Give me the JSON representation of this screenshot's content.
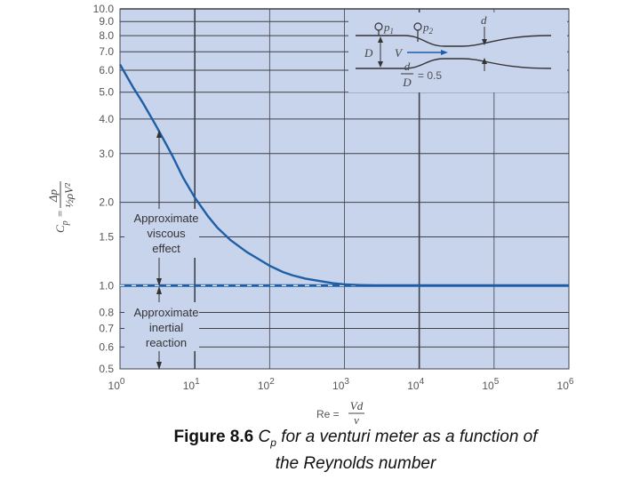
{
  "chart_data": {
    "type": "line",
    "x_scale": "log",
    "y_scale": "log",
    "xlim": [
      1,
      1000000
    ],
    "ylim": [
      0.5,
      10.0
    ],
    "grid": true,
    "x_ticks": [
      {
        "value": 1,
        "base": "10",
        "exp": "0"
      },
      {
        "value": 10,
        "base": "10",
        "exp": "1"
      },
      {
        "value": 100,
        "base": "10",
        "exp": "2"
      },
      {
        "value": 1000,
        "base": "10",
        "exp": "3"
      },
      {
        "value": 10000,
        "base": "10",
        "exp": "4"
      },
      {
        "value": 100000,
        "base": "10",
        "exp": "5"
      },
      {
        "value": 1000000,
        "base": "10",
        "exp": "6"
      }
    ],
    "y_ticks": [
      {
        "value": 10.0,
        "label": "10.0"
      },
      {
        "value": 9.0,
        "label": "9.0"
      },
      {
        "value": 8.0,
        "label": "8.0"
      },
      {
        "value": 7.0,
        "label": "7.0"
      },
      {
        "value": 6.0,
        "label": "6.0"
      },
      {
        "value": 5.0,
        "label": "5.0"
      },
      {
        "value": 4.0,
        "label": "4.0"
      },
      {
        "value": 3.0,
        "label": "3.0"
      },
      {
        "value": 2.0,
        "label": "2.0"
      },
      {
        "value": 1.5,
        "label": "1.5"
      },
      {
        "value": 1.0,
        "label": "1.0"
      },
      {
        "value": 0.8,
        "label": "0.8"
      },
      {
        "value": 0.7,
        "label": "0.7"
      },
      {
        "value": 0.6,
        "label": "0.6"
      },
      {
        "value": 0.5,
        "label": "0.5"
      }
    ],
    "series": [
      {
        "x": [
          1,
          1.5,
          2,
          3,
          4,
          5,
          7,
          10,
          15,
          20,
          30,
          50,
          70,
          100,
          150,
          200,
          300,
          500,
          700,
          1000,
          1500,
          2000,
          3000,
          5000,
          7000,
          10000,
          100000,
          1000000
        ],
        "y": [
          6.3,
          5.2,
          4.6,
          3.8,
          3.3,
          2.95,
          2.45,
          2.08,
          1.78,
          1.62,
          1.46,
          1.32,
          1.25,
          1.18,
          1.12,
          1.09,
          1.06,
          1.035,
          1.02,
          1.01,
          1.005,
          1.002,
          1.0,
          1.0,
          1.0,
          1.0,
          1.0,
          1.0
        ]
      }
    ],
    "reference_line": {
      "y": 1.0,
      "style": "dashed"
    },
    "ylabel": {
      "main": "C",
      "sub": "p",
      "eq": "=",
      "numer": "Δp",
      "denom": "½ρV²"
    },
    "xlabel": {
      "main": "Re =",
      "numer": "Vd",
      "denom": "ν"
    },
    "annotations": {
      "viscous": [
        "Approximate",
        "viscous",
        "effect"
      ],
      "inertial": [
        "Approximate",
        "inertial",
        "reaction"
      ]
    },
    "inset": {
      "p1_label": "p",
      "p1_sub": "1",
      "p2_label": "p",
      "p2_sub": "2",
      "D_label": "D",
      "d_label": "d",
      "V_label": "V",
      "ratio_numer": "d",
      "ratio_denom": "D",
      "ratio_value": "= 0.5"
    },
    "colors": {
      "background": "#c8d3ec",
      "grid": "#3e4148",
      "curve": "#1d5fa6",
      "dash": "#e6ecf7"
    }
  },
  "caption": {
    "number": "Figure 8.6",
    "sym": "C",
    "sym_sub": "p",
    "text": " for a venturi meter as a function of",
    "line2": "the Reynolds number"
  }
}
